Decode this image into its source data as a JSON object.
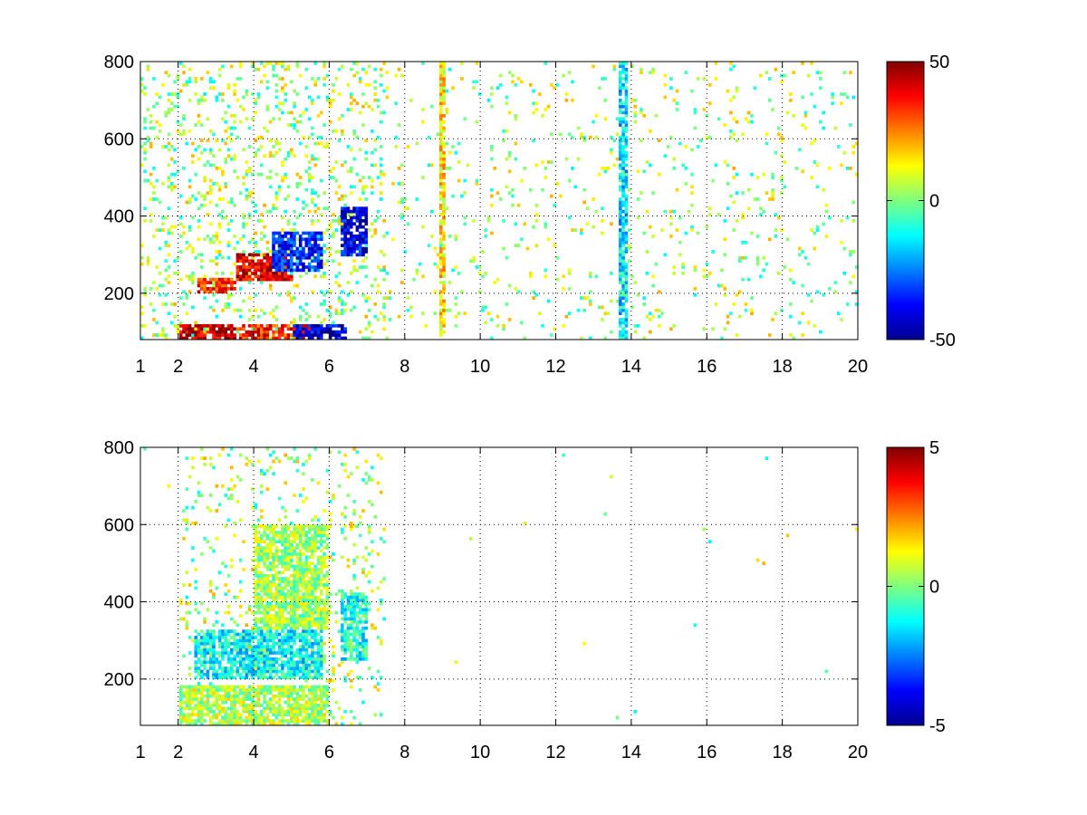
{
  "chart_data": [
    {
      "type": "heatmap",
      "title": "",
      "xlabel": "",
      "ylabel": "",
      "xlim": [
        1,
        20
      ],
      "ylim": [
        80,
        800
      ],
      "xticks": [
        1,
        2,
        4,
        6,
        8,
        10,
        12,
        14,
        16,
        18,
        20
      ],
      "yticks": [
        200,
        400,
        600,
        800
      ],
      "grid": true,
      "colormap": "jet",
      "clim": [
        -50,
        50
      ],
      "colorbar_ticks": [
        50,
        0,
        -50
      ],
      "features": [
        {
          "x": [
            2.0,
            3.5
          ],
          "y": [
            80,
            120
          ],
          "value": 45
        },
        {
          "x": [
            3.5,
            5.5
          ],
          "y": [
            80,
            120
          ],
          "value": 35
        },
        {
          "x": [
            5.0,
            6.5
          ],
          "y": [
            80,
            120
          ],
          "value": -40
        },
        {
          "x": [
            2.5,
            3.5
          ],
          "y": [
            200,
            240
          ],
          "value": 35
        },
        {
          "x": [
            3.5,
            5.0
          ],
          "y": [
            230,
            300
          ],
          "value": 40
        },
        {
          "x": [
            4.5,
            5.8
          ],
          "y": [
            260,
            360
          ],
          "value": -35
        },
        {
          "x": [
            6.3,
            7.0
          ],
          "y": [
            300,
            420
          ],
          "value": -40
        },
        {
          "x": [
            8.9,
            9.1
          ],
          "y": [
            80,
            800
          ],
          "value": 15
        },
        {
          "x": [
            13.7,
            13.9
          ],
          "y": [
            80,
            800
          ],
          "value": -15
        }
      ]
    },
    {
      "type": "heatmap",
      "title": "",
      "xlabel": "",
      "ylabel": "",
      "xlim": [
        1,
        20
      ],
      "ylim": [
        80,
        800
      ],
      "xticks": [
        1,
        2,
        4,
        6,
        8,
        10,
        12,
        14,
        16,
        18,
        20
      ],
      "yticks": [
        200,
        400,
        600,
        800
      ],
      "grid": true,
      "colormap": "jet",
      "clim": [
        -5,
        5
      ],
      "colorbar_ticks": [
        5,
        0,
        -5
      ],
      "features": [
        {
          "x": [
            2.0,
            6.0
          ],
          "y": [
            80,
            180
          ],
          "value": 0.5
        },
        {
          "x": [
            2.4,
            5.8
          ],
          "y": [
            200,
            330
          ],
          "value": -1.2
        },
        {
          "x": [
            4.0,
            6.0
          ],
          "y": [
            330,
            600
          ],
          "value": 0.3
        },
        {
          "x": [
            6.3,
            7.0
          ],
          "y": [
            250,
            420
          ],
          "value": -1.0
        }
      ]
    }
  ]
}
